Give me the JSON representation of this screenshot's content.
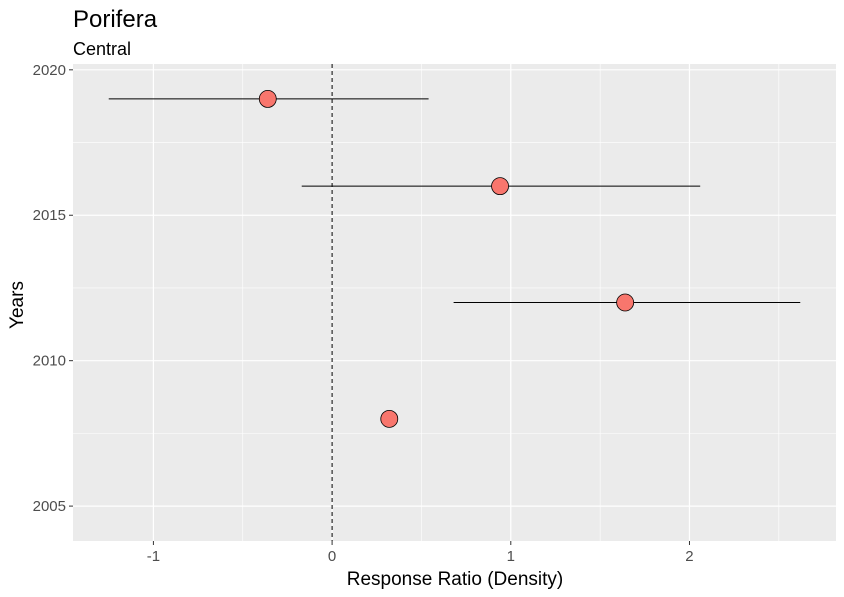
{
  "chart_data": {
    "type": "scatter",
    "title": "Porifera",
    "subtitle": "Central",
    "xlabel": "Response Ratio (Density)",
    "ylabel": "Years",
    "xlim": [
      -1.45,
      2.82
    ],
    "ylim": [
      2003.8,
      2020.2
    ],
    "x_ticks": [
      -1,
      0,
      1,
      2
    ],
    "y_ticks": [
      2005,
      2010,
      2015,
      2020
    ],
    "x_tick_labels": [
      "-1",
      "0",
      "1",
      "2"
    ],
    "y_tick_labels": [
      "2005",
      "2010",
      "2015",
      "2020"
    ],
    "reference_line_x": 0,
    "grid": true,
    "points": [
      {
        "year": 2019,
        "x": -0.36,
        "ci_low": -1.25,
        "ci_high": 0.54
      },
      {
        "year": 2016,
        "x": 0.94,
        "ci_low": -0.17,
        "ci_high": 2.06
      },
      {
        "year": 2012,
        "x": 1.64,
        "ci_low": 0.68,
        "ci_high": 2.62
      },
      {
        "year": 2008,
        "x": 0.32,
        "ci_low": 0.29,
        "ci_high": 0.35
      }
    ],
    "colors": {
      "panel": "#ebebeb",
      "grid_major": "#ffffff",
      "point_fill": "#f8766d",
      "point_stroke": "#000000",
      "errorbar": "#000000"
    }
  }
}
